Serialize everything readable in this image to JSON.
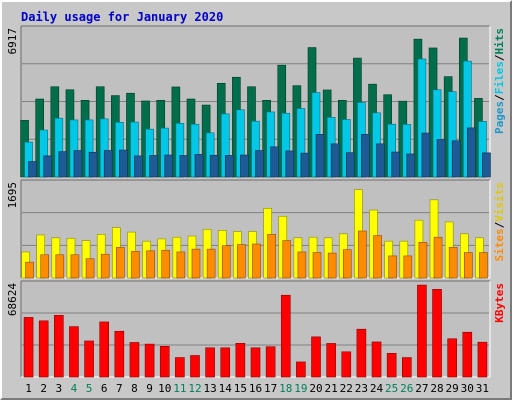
{
  "title": "Daily usage for January 2020",
  "chart_data": [
    {
      "type": "bar",
      "name": "pages-files-hits",
      "categories": [
        "1",
        "2",
        "3",
        "4",
        "5",
        "6",
        "7",
        "8",
        "9",
        "10",
        "11",
        "12",
        "13",
        "14",
        "15",
        "16",
        "17",
        "18",
        "19",
        "20",
        "21",
        "22",
        "23",
        "24",
        "25",
        "26",
        "27",
        "28",
        "29",
        "30",
        "31"
      ],
      "y_tick_label": "6917",
      "ylim": [
        0,
        6917
      ],
      "series": [
        {
          "name": "Hits",
          "color": "#006e4a",
          "values": [
            2630,
            3620,
            4190,
            4050,
            3560,
            4190,
            3780,
            3890,
            3530,
            3560,
            4180,
            3620,
            3340,
            4350,
            4630,
            4190,
            3560,
            5190,
            4240,
            6010,
            4040,
            3560,
            5520,
            4310,
            3820,
            3520,
            6400,
            5990,
            4660,
            6450,
            3650
          ]
        },
        {
          "name": "Files",
          "color": "#00c8e6",
          "values": [
            1620,
            2180,
            2730,
            2650,
            2650,
            2700,
            2540,
            2550,
            2220,
            2270,
            2490,
            2450,
            2050,
            2930,
            3120,
            2590,
            3020,
            2960,
            3180,
            3920,
            2770,
            2670,
            3460,
            2980,
            2450,
            2440,
            5480,
            4050,
            3960,
            5380,
            2580
          ]
        },
        {
          "name": "Pages",
          "color": "#1e5a96",
          "values": [
            720,
            980,
            1180,
            1230,
            1150,
            1230,
            1250,
            980,
            1000,
            1020,
            1000,
            1050,
            1010,
            1000,
            1020,
            1230,
            1400,
            1210,
            1110,
            1980,
            1540,
            1130,
            1980,
            1540,
            1160,
            1070,
            2040,
            1740,
            1680,
            2280,
            1120
          ]
        }
      ],
      "legend": [
        "Pages",
        "Files",
        "Hits"
      ]
    },
    {
      "type": "bar",
      "name": "sites-visits",
      "categories": [
        "1",
        "2",
        "3",
        "4",
        "5",
        "6",
        "7",
        "8",
        "9",
        "10",
        "11",
        "12",
        "13",
        "14",
        "15",
        "16",
        "17",
        "18",
        "19",
        "20",
        "21",
        "22",
        "23",
        "24",
        "25",
        "26",
        "27",
        "28",
        "29",
        "30",
        "31"
      ],
      "y_tick_label": "1695",
      "ylim": [
        0,
        1695
      ],
      "series": [
        {
          "name": "Visits",
          "color": "#ffff00",
          "values": [
            460,
            760,
            710,
            700,
            660,
            770,
            890,
            810,
            650,
            690,
            720,
            740,
            860,
            840,
            820,
            820,
            1230,
            1090,
            710,
            720,
            710,
            780,
            1560,
            1200,
            650,
            650,
            1020,
            1380,
            990,
            780,
            710
          ]
        },
        {
          "name": "Sites",
          "color": "#ff8c00",
          "values": [
            280,
            410,
            410,
            410,
            340,
            420,
            540,
            470,
            480,
            490,
            460,
            510,
            510,
            570,
            590,
            600,
            770,
            660,
            460,
            450,
            440,
            500,
            830,
            750,
            390,
            390,
            630,
            720,
            540,
            450,
            450
          ]
        }
      ],
      "legend": [
        "Sites",
        "Visits"
      ]
    },
    {
      "type": "bar",
      "name": "kbytes",
      "categories": [
        "1",
        "2",
        "3",
        "4",
        "5",
        "6",
        "7",
        "8",
        "9",
        "10",
        "11",
        "12",
        "13",
        "14",
        "15",
        "16",
        "17",
        "18",
        "19",
        "20",
        "21",
        "22",
        "23",
        "24",
        "25",
        "26",
        "27",
        "28",
        "29",
        "30",
        "31"
      ],
      "y_tick_label": "68624",
      "ylim": [
        0,
        68624
      ],
      "series": [
        {
          "name": "KBytes",
          "color": "#ff0000",
          "values": [
            43500,
            41000,
            45000,
            36800,
            26300,
            40200,
            33400,
            25200,
            24000,
            22400,
            14200,
            15700,
            21300,
            21300,
            24600,
            21300,
            22100,
            59700,
            11000,
            29300,
            24500,
            18400,
            34900,
            25600,
            17300,
            14200,
            67100,
            64000,
            27900,
            32700,
            25400
          ]
        }
      ],
      "legend": [
        "KBytes"
      ]
    }
  ],
  "x_labels": [
    {
      "text": "1",
      "color": "#000000"
    },
    {
      "text": "2",
      "color": "#000000"
    },
    {
      "text": "3",
      "color": "#000000"
    },
    {
      "text": "4",
      "color": "#00805a"
    },
    {
      "text": "5",
      "color": "#00805a"
    },
    {
      "text": "6",
      "color": "#000000"
    },
    {
      "text": "7",
      "color": "#000000"
    },
    {
      "text": "8",
      "color": "#000000"
    },
    {
      "text": "9",
      "color": "#000000"
    },
    {
      "text": "10",
      "color": "#000000"
    },
    {
      "text": "11",
      "color": "#00805a"
    },
    {
      "text": "12",
      "color": "#00805a"
    },
    {
      "text": "13",
      "color": "#000000"
    },
    {
      "text": "14",
      "color": "#000000"
    },
    {
      "text": "15",
      "color": "#000000"
    },
    {
      "text": "16",
      "color": "#000000"
    },
    {
      "text": "17",
      "color": "#000000"
    },
    {
      "text": "18",
      "color": "#00805a"
    },
    {
      "text": "19",
      "color": "#00805a"
    },
    {
      "text": "20",
      "color": "#000000"
    },
    {
      "text": "21",
      "color": "#000000"
    },
    {
      "text": "22",
      "color": "#000000"
    },
    {
      "text": "23",
      "color": "#000000"
    },
    {
      "text": "24",
      "color": "#000000"
    },
    {
      "text": "25",
      "color": "#00805a"
    },
    {
      "text": "26",
      "color": "#00805a"
    },
    {
      "text": "27",
      "color": "#000000"
    },
    {
      "text": "28",
      "color": "#000000"
    },
    {
      "text": "29",
      "color": "#000000"
    },
    {
      "text": "30",
      "color": "#000000"
    },
    {
      "text": "31",
      "color": "#000000"
    }
  ],
  "legend_separator": "/"
}
